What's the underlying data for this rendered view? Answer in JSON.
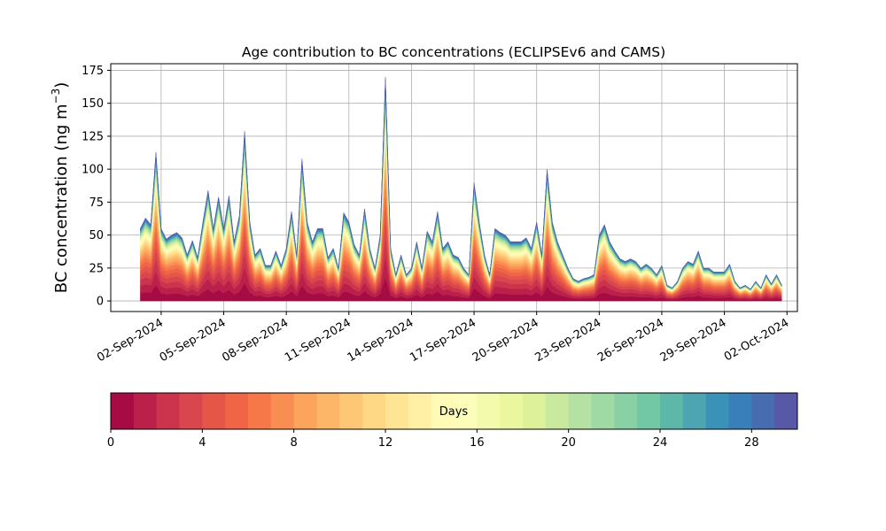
{
  "chart_data": {
    "type": "area",
    "title": "Age contribution to BC concentrations (ECLIPSEv6 and CAMS)",
    "ylabel_main": "BC concentration (ng m",
    "ylabel_sup": "−3",
    "ylabel_close": ")",
    "xlabel": "",
    "ylim": [
      -8,
      180
    ],
    "yticks": [
      0,
      25,
      50,
      75,
      100,
      125,
      150,
      175
    ],
    "xlim": [
      "2024-08-30T14:00",
      "2024-10-02T12:00"
    ],
    "xtick_dates": [
      "2024-09-02",
      "2024-09-05",
      "2024-09-08",
      "2024-09-11",
      "2024-09-14",
      "2024-09-17",
      "2024-09-20",
      "2024-09-23",
      "2024-09-26",
      "2024-09-29",
      "2024-10-02"
    ],
    "xtick_labels": [
      "02-Sep-2024",
      "05-Sep-2024",
      "08-Sep-2024",
      "11-Sep-2024",
      "14-Sep-2024",
      "17-Sep-2024",
      "20-Sep-2024",
      "23-Sep-2024",
      "26-Sep-2024",
      "29-Sep-2024",
      "02-Oct-2024"
    ],
    "grid": true,
    "stacked_by": "age in days (30 one-day bins, 0 at bottom to 30 at top)",
    "total_series": {
      "name": "Total BC",
      "points": [
        [
          "2024-09-01T00:00",
          55
        ],
        [
          "2024-09-01T06:00",
          63
        ],
        [
          "2024-09-01T12:00",
          58
        ],
        [
          "2024-09-01T18:00",
          113
        ],
        [
          "2024-09-02T00:00",
          55
        ],
        [
          "2024-09-02T06:00",
          47
        ],
        [
          "2024-09-02T12:00",
          50
        ],
        [
          "2024-09-02T18:00",
          52
        ],
        [
          "2024-09-03T00:00",
          48
        ],
        [
          "2024-09-03T06:00",
          35
        ],
        [
          "2024-09-03T12:00",
          46
        ],
        [
          "2024-09-03T18:00",
          33
        ],
        [
          "2024-09-04T00:00",
          60
        ],
        [
          "2024-09-04T06:00",
          84
        ],
        [
          "2024-09-04T12:00",
          55
        ],
        [
          "2024-09-04T18:00",
          79
        ],
        [
          "2024-09-05T00:00",
          55
        ],
        [
          "2024-09-05T06:00",
          80
        ],
        [
          "2024-09-05T12:00",
          45
        ],
        [
          "2024-09-05T18:00",
          65
        ],
        [
          "2024-09-06T00:00",
          129
        ],
        [
          "2024-09-06T06:00",
          60
        ],
        [
          "2024-09-06T12:00",
          35
        ],
        [
          "2024-09-06T18:00",
          40
        ],
        [
          "2024-09-07T00:00",
          27
        ],
        [
          "2024-09-07T06:00",
          27
        ],
        [
          "2024-09-07T12:00",
          38
        ],
        [
          "2024-09-07T18:00",
          27
        ],
        [
          "2024-09-08T00:00",
          40
        ],
        [
          "2024-09-08T06:00",
          68
        ],
        [
          "2024-09-08T12:00",
          35
        ],
        [
          "2024-09-08T18:00",
          108
        ],
        [
          "2024-09-09T00:00",
          60
        ],
        [
          "2024-09-09T06:00",
          45
        ],
        [
          "2024-09-09T12:00",
          55
        ],
        [
          "2024-09-09T18:00",
          55
        ],
        [
          "2024-09-10T00:00",
          33
        ],
        [
          "2024-09-10T06:00",
          40
        ],
        [
          "2024-09-10T12:00",
          25
        ],
        [
          "2024-09-10T18:00",
          67
        ],
        [
          "2024-09-11T00:00",
          60
        ],
        [
          "2024-09-11T06:00",
          43
        ],
        [
          "2024-09-11T12:00",
          35
        ],
        [
          "2024-09-11T18:00",
          70
        ],
        [
          "2024-09-12T00:00",
          40
        ],
        [
          "2024-09-12T06:00",
          25
        ],
        [
          "2024-09-12T12:00",
          50
        ],
        [
          "2024-09-12T18:00",
          170
        ],
        [
          "2024-09-13T00:00",
          40
        ],
        [
          "2024-09-13T06:00",
          20
        ],
        [
          "2024-09-13T12:00",
          35
        ],
        [
          "2024-09-13T18:00",
          20
        ],
        [
          "2024-09-14T00:00",
          25
        ],
        [
          "2024-09-14T06:00",
          45
        ],
        [
          "2024-09-14T12:00",
          25
        ],
        [
          "2024-09-14T18:00",
          53
        ],
        [
          "2024-09-15T00:00",
          45
        ],
        [
          "2024-09-15T06:00",
          68
        ],
        [
          "2024-09-15T12:00",
          40
        ],
        [
          "2024-09-15T18:00",
          45
        ],
        [
          "2024-09-16T00:00",
          35
        ],
        [
          "2024-09-16T06:00",
          33
        ],
        [
          "2024-09-16T12:00",
          25
        ],
        [
          "2024-09-16T18:00",
          20
        ],
        [
          "2024-09-17T00:00",
          90
        ],
        [
          "2024-09-17T06:00",
          60
        ],
        [
          "2024-09-17T12:00",
          35
        ],
        [
          "2024-09-17T18:00",
          20
        ],
        [
          "2024-09-18T00:00",
          55
        ],
        [
          "2024-09-18T06:00",
          52
        ],
        [
          "2024-09-18T12:00",
          50
        ],
        [
          "2024-09-18T18:00",
          45
        ],
        [
          "2024-09-19T00:00",
          45
        ],
        [
          "2024-09-19T06:00",
          45
        ],
        [
          "2024-09-19T12:00",
          48
        ],
        [
          "2024-09-19T18:00",
          40
        ],
        [
          "2024-09-20T00:00",
          60
        ],
        [
          "2024-09-20T06:00",
          35
        ],
        [
          "2024-09-20T12:00",
          100
        ],
        [
          "2024-09-20T18:00",
          60
        ],
        [
          "2024-09-21T00:00",
          45
        ],
        [
          "2024-09-21T06:00",
          35
        ],
        [
          "2024-09-21T12:00",
          25
        ],
        [
          "2024-09-21T18:00",
          17
        ],
        [
          "2024-09-22T00:00",
          15
        ],
        [
          "2024-09-22T06:00",
          17
        ],
        [
          "2024-09-22T12:00",
          18
        ],
        [
          "2024-09-22T18:00",
          20
        ],
        [
          "2024-09-23T00:00",
          50
        ],
        [
          "2024-09-23T06:00",
          58
        ],
        [
          "2024-09-23T12:00",
          45
        ],
        [
          "2024-09-23T18:00",
          38
        ],
        [
          "2024-09-24T00:00",
          32
        ],
        [
          "2024-09-24T06:00",
          30
        ],
        [
          "2024-09-24T12:00",
          32
        ],
        [
          "2024-09-24T18:00",
          30
        ],
        [
          "2024-09-25T00:00",
          25
        ],
        [
          "2024-09-25T06:00",
          28
        ],
        [
          "2024-09-25T12:00",
          25
        ],
        [
          "2024-09-25T18:00",
          20
        ],
        [
          "2024-09-26T00:00",
          27
        ],
        [
          "2024-09-26T06:00",
          12
        ],
        [
          "2024-09-26T12:00",
          10
        ],
        [
          "2024-09-26T18:00",
          15
        ],
        [
          "2024-09-27T00:00",
          25
        ],
        [
          "2024-09-27T06:00",
          30
        ],
        [
          "2024-09-27T12:00",
          28
        ],
        [
          "2024-09-27T18:00",
          38
        ],
        [
          "2024-09-28T00:00",
          25
        ],
        [
          "2024-09-28T06:00",
          25
        ],
        [
          "2024-09-28T12:00",
          22
        ],
        [
          "2024-09-28T18:00",
          22
        ],
        [
          "2024-09-29T00:00",
          22
        ],
        [
          "2024-09-29T06:00",
          28
        ],
        [
          "2024-09-29T12:00",
          15
        ],
        [
          "2024-09-29T18:00",
          10
        ],
        [
          "2024-09-30T00:00",
          12
        ],
        [
          "2024-09-30T06:00",
          9
        ],
        [
          "2024-09-30T12:00",
          15
        ],
        [
          "2024-09-30T18:00",
          10
        ],
        [
          "2024-10-01T00:00",
          20
        ],
        [
          "2024-10-01T06:00",
          13
        ],
        [
          "2024-10-01T12:00",
          20
        ],
        [
          "2024-10-01T18:00",
          12
        ]
      ]
    },
    "colorbar": {
      "label": "Days",
      "min": 0,
      "max": 30,
      "bins": 30,
      "ticks": [
        0,
        4,
        8,
        12,
        16,
        20,
        24,
        28
      ],
      "colormap_anchors": [
        "#9e0142",
        "#d53e4f",
        "#f46d43",
        "#fdae61",
        "#fee08b",
        "#ffffbf",
        "#e6f598",
        "#abdda4",
        "#66c2a5",
        "#3288bd",
        "#5e4fa2"
      ]
    }
  }
}
